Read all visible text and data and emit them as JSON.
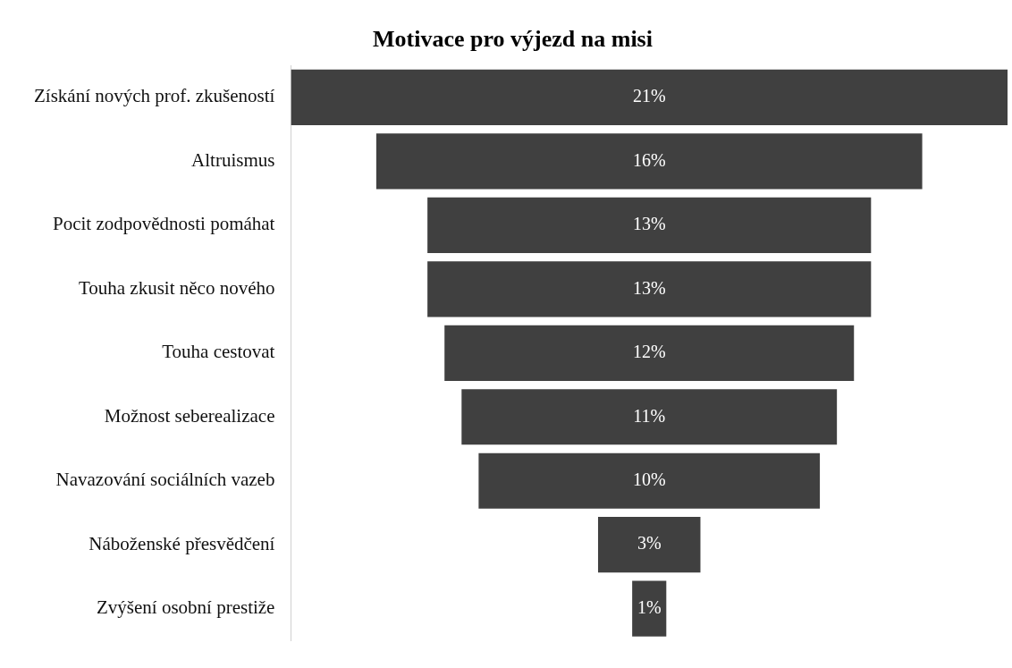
{
  "chart_data": {
    "type": "other",
    "title": "Motivace pro výjezd na misi",
    "categories": [
      "Získání nových prof. zkušeností",
      "Altruismus",
      "Pocit zodpovědnosti pomáhat",
      "Touha zkusit něco nového",
      "Touha cestovat",
      "Možnost seberealizace",
      "Navazování sociálních vazeb",
      "Náboženské přesvědčení",
      "Zvýšení osobní prestiže"
    ],
    "values": [
      21,
      16,
      13,
      13,
      12,
      11,
      10,
      3,
      1
    ],
    "value_labels": [
      "21%",
      "16%",
      "13%",
      "13%",
      "12%",
      "11%",
      "10%",
      "3%",
      "1%"
    ],
    "color": "#404040"
  }
}
